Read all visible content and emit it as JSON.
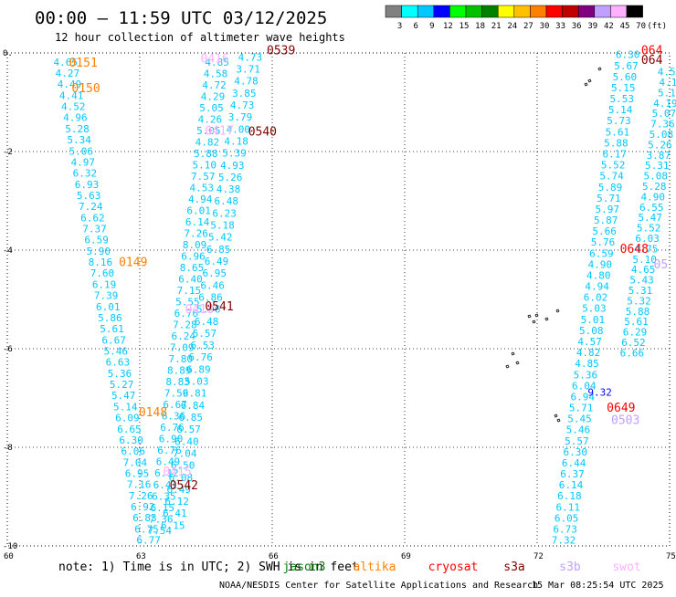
{
  "header": {
    "title": "00:00 – 11:59 UTC 03/12/2025",
    "subtitle": "12 hour collection of altimeter wave heights"
  },
  "scale": {
    "labels": [
      "3",
      "6",
      "9",
      "12",
      "15",
      "18",
      "21",
      "24",
      "27",
      "30",
      "33",
      "36",
      "39",
      "42",
      "45",
      "70",
      "(ft)"
    ],
    "colors": [
      "#808080",
      "#00ffff",
      "#00c8ff",
      "#0000ff",
      "#00ff00",
      "#00c000",
      "#008000",
      "#ffff00",
      "#ffc000",
      "#ff8000",
      "#ff0000",
      "#c00000",
      "#800080",
      "#c0a0ff",
      "#ffb0ff",
      "#000000"
    ]
  },
  "footer": {
    "note": "note: 1) Time is in UTC; 2) SWH is in feet",
    "sats": [
      {
        "name": "jason3",
        "color": "#008000"
      },
      {
        "name": "altika",
        "color": "#ff8000"
      },
      {
        "name": "cryosat",
        "color": "#ff0000"
      },
      {
        "name": "s3a",
        "color": "#800000"
      },
      {
        "name": "s3b",
        "color": "#c0a0ff"
      },
      {
        "name": "swot",
        "color": "#ffb0ff"
      }
    ],
    "credit": "NOAA/NESDIS Center for Satellite Applications and Research",
    "timestamp": "15 Mar 08:25:54 UTC 2025"
  },
  "chart_data": {
    "type": "scatter",
    "title": "00:00 – 11:59 UTC 03/12/2025",
    "subtitle": "12 hour collection of altimeter wave heights",
    "xlabel": "",
    "ylabel": "",
    "xlim": [
      60,
      75
    ],
    "ylim": [
      -10,
      0
    ],
    "xticks": [
      60,
      63,
      66,
      69,
      72,
      75
    ],
    "yticks": [
      0,
      -2,
      -4,
      -6,
      -8,
      -10
    ],
    "grid": true,
    "units": "ft",
    "tracks": [
      {
        "id": "A",
        "satellite": "cyan",
        "color": "#00c8ff",
        "start": [
          61.32,
          -0.2
        ],
        "end": [
          63.2,
          -9.9
        ],
        "values": [
          "4.65",
          "4.27",
          "4.49",
          "4.41",
          "4.52",
          "4.96",
          "5.28",
          "5.34",
          "5.06",
          "4.97",
          "6.32",
          "6.93",
          "5.63",
          "7.24",
          "6.62",
          "7.37",
          "6.59",
          "5.90",
          "8.16",
          "7.60",
          "6.19",
          "7.39",
          "6.01",
          "5.86",
          "5.61",
          "6.67",
          "5.46",
          "6.63",
          "5.36",
          "5.27",
          "5.47",
          "5.14",
          "6.09",
          "6.65",
          "6.30",
          "6.06",
          "7.04",
          "6.95",
          "7.16",
          "7.26",
          "6.92",
          "6.83",
          "6.75",
          "6.77"
        ]
      },
      {
        "id": "B",
        "satellite": "cyan",
        "color": "#00c8ff",
        "start": [
          64.75,
          -0.2
        ],
        "end": [
          63.45,
          -9.7
        ],
        "values": [
          "4.85",
          "4.58",
          "4.72",
          "4.29",
          "5.05",
          "4.26",
          "5.05",
          "4.82",
          "5.88",
          "5.10",
          "7.57",
          "4.53",
          "4.94",
          "6.01",
          "6.14",
          "7.26",
          "8.09",
          "6.96",
          "8.65",
          "6.40",
          "7.15",
          "5.55",
          "6.76",
          "7.28",
          "6.24",
          "7.09",
          "7.80",
          "8.89",
          "8.83",
          "7.59",
          "6.67",
          "6.36",
          "6.76",
          "6.90",
          "6.76",
          "6.49",
          "6.12",
          "6.41",
          "6.35",
          "6.15",
          "7.36",
          "7.54"
        ]
      },
      {
        "id": "C",
        "satellite": "cyan",
        "color": "#00c8ff",
        "start": [
          65.5,
          -0.1
        ],
        "end": [
          63.75,
          -9.6
        ],
        "values": [
          "4.73",
          "3.71",
          "4.78",
          "3.85",
          "4.73",
          "3.79",
          "4.00",
          "4.18",
          "5.39",
          "4.93",
          "5.26",
          "4.38",
          "6.48",
          "6.23",
          "5.18",
          "5.42",
          "6.85",
          "6.49",
          "6.95",
          "6.46",
          "6.86",
          "5.96",
          "6.48",
          "5.57",
          "6.53",
          "6.76",
          "6.89",
          "5.03",
          "6.81",
          "6.84",
          "6.85",
          "6.57",
          "6.40",
          "7.04",
          "6.50",
          "6.08",
          "6.49",
          "6.12",
          "6.41",
          "6.15"
        ]
      },
      {
        "id": "D",
        "satellite": "cyan",
        "color": "#00c8ff",
        "start": [
          74.05,
          -0.05
        ],
        "end": [
          72.6,
          -9.9
        ],
        "values": [
          "6.30",
          "5.67",
          "5.60",
          "5.15",
          "5.53",
          "5.14",
          "5.73",
          "5.61",
          "5.88",
          "6.17",
          "5.52",
          "5.74",
          "5.89",
          "5.71",
          "5.97",
          "5.87",
          "5.66",
          "5.76",
          "6.59",
          "4.90",
          "4.80",
          "4.94",
          "6.02",
          "5.03",
          "5.01",
          "5.08",
          "4.57",
          "4.82",
          "4.85",
          "5.36",
          "6.04",
          "6.94",
          "5.71",
          "5.45",
          "5.46",
          "5.57",
          "6.30",
          "6.44",
          "6.37",
          "6.14",
          "6.18",
          "6.11",
          "6.05",
          "6.73",
          "7.32"
        ]
      },
      {
        "id": "E",
        "satellite": "cyan",
        "color": "#00c8ff",
        "start": [
          75.0,
          -0.4
        ],
        "end": [
          74.15,
          -6.1
        ],
        "values": [
          "4.54",
          "4.1",
          "5.1",
          "4.19",
          "5.07",
          "7.36",
          "5.08",
          "5.26",
          "3.87",
          "5.31",
          "5.08",
          "5.28",
          "4.90",
          "6.55",
          "5.47",
          "5.52",
          "6.03",
          "4.75",
          "5.10",
          "4.65",
          "5.43",
          "5.31",
          "5.32",
          "5.88",
          "5.61",
          "6.29",
          "6.52",
          "6.66"
        ]
      }
    ],
    "pass_labels": [
      {
        "text": "0151",
        "color": "#ff8000",
        "lon": 61.72,
        "lat": -0.2
      },
      {
        "text": "0150",
        "color": "#ff8000",
        "lon": 61.78,
        "lat": -0.72
      },
      {
        "text": "0149",
        "color": "#ff8000",
        "lon": 62.85,
        "lat": -4.25
      },
      {
        "text": "0148",
        "color": "#ff8000",
        "lon": 63.3,
        "lat": -7.3
      },
      {
        "text": "0416",
        "color": "#ffb0ff",
        "lon": 64.7,
        "lat": -0.12
      },
      {
        "text": "0417",
        "color": "#ffb0ff",
        "lon": 64.8,
        "lat": -1.58
      },
      {
        "text": "0418",
        "color": "#ffb0ff",
        "lon": 64.35,
        "lat": -5.2
      },
      {
        "text": "0415",
        "color": "#ffb0ff",
        "lon": 63.85,
        "lat": -8.5
      },
      {
        "text": "0539",
        "color": "#800000",
        "lon": 66.2,
        "lat": 0.05
      },
      {
        "text": "0540",
        "color": "#800000",
        "lon": 65.78,
        "lat": -1.6
      },
      {
        "text": "0541",
        "color": "#800000",
        "lon": 64.8,
        "lat": -5.15
      },
      {
        "text": "0542",
        "color": "#800000",
        "lon": 64.0,
        "lat": -8.78
      },
      {
        "text": "0648",
        "color": "#ff0000",
        "lon": 74.2,
        "lat": -3.98
      },
      {
        "text": "0649",
        "color": "#ff0000",
        "lon": 73.9,
        "lat": -7.2
      },
      {
        "text": "0503",
        "color": "#c0a0ff",
        "lon": 74.0,
        "lat": -7.45
      },
      {
        "text": "05",
        "color": "#c0a0ff",
        "lon": 74.8,
        "lat": -4.3
      },
      {
        "text": "064",
        "color": "#ff0000",
        "lon": 74.6,
        "lat": 0.05
      },
      {
        "text": "064",
        "color": "#800000",
        "lon": 74.6,
        "lat": -0.15
      }
    ],
    "highlighted_value": {
      "text": "9.32",
      "color": "#0000ff",
      "lon": 73.42,
      "lat": -6.9
    }
  }
}
